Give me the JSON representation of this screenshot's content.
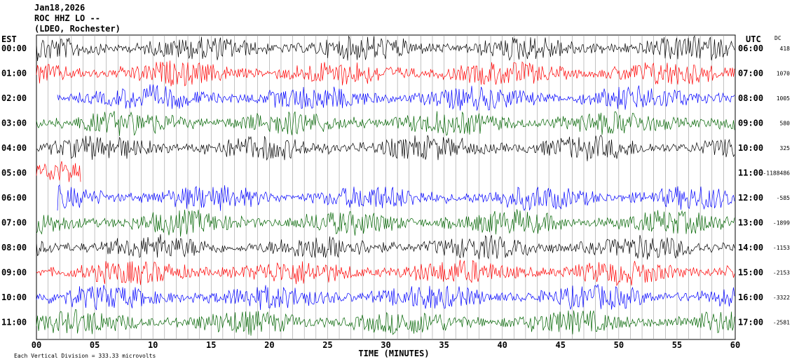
{
  "header": {
    "date": "Jan18,2026",
    "station": "ROC HHZ LO --",
    "location": "(LDEO, Rochester)"
  },
  "chart_data": {
    "type": "line",
    "title": "",
    "left_axis_label": "EST",
    "right_axis_label": "UTC",
    "dc_label": "DC",
    "xlabel": "TIME (MINUTES)",
    "x_ticks": [
      "00",
      "05",
      "10",
      "15",
      "20",
      "25",
      "30",
      "35",
      "40",
      "45",
      "50",
      "55",
      "60"
    ],
    "xlim": [
      0,
      60
    ],
    "scale_note": "Each Vertical Division =  333.33 microvolts",
    "grid": true,
    "rows": [
      {
        "est": "00:00",
        "utc": "06:00",
        "dc": "418",
        "color": "#000000"
      },
      {
        "est": "01:00",
        "utc": "07:00",
        "dc": "1070",
        "color": "#ff0000"
      },
      {
        "est": "02:00",
        "utc": "08:00",
        "dc": "1005",
        "color": "#0000ff"
      },
      {
        "est": "03:00",
        "utc": "09:00",
        "dc": "580",
        "color": "#006400"
      },
      {
        "est": "04:00",
        "utc": "10:00",
        "dc": "325",
        "color": "#000000"
      },
      {
        "est": "05:00",
        "utc": "11:00",
        "dc": "-1188486",
        "color": "#ff0000"
      },
      {
        "est": "06:00",
        "utc": "12:00",
        "dc": "-585",
        "color": "#0000ff"
      },
      {
        "est": "07:00",
        "utc": "13:00",
        "dc": "-1899",
        "color": "#006400"
      },
      {
        "est": "08:00",
        "utc": "14:00",
        "dc": "-1153",
        "color": "#000000"
      },
      {
        "est": "09:00",
        "utc": "15:00",
        "dc": "-2153",
        "color": "#ff0000"
      },
      {
        "est": "10:00",
        "utc": "16:00",
        "dc": "-3322",
        "color": "#0000ff"
      },
      {
        "est": "11:00",
        "utc": "17:00",
        "dc": "-2581",
        "color": "#006400"
      }
    ],
    "line_colors": [
      "#000000",
      "#ff0000",
      "#0000ff",
      "#006400"
    ]
  }
}
